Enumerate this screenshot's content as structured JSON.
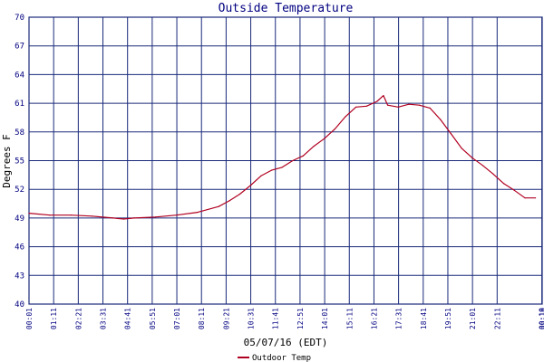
{
  "chart_data": {
    "type": "line",
    "title": "Outside Temperature",
    "ylabel": "Degrees F",
    "xlabel": "05/07/16 (EDT)",
    "ylim": [
      40,
      70
    ],
    "yticks": [
      40,
      43,
      46,
      49,
      52,
      55,
      58,
      61,
      64,
      67,
      70
    ],
    "xticks": [
      "00:01",
      "01:11",
      "02:21",
      "03:31",
      "04:41",
      "05:51",
      "07:01",
      "08:11",
      "09:21",
      "10:31",
      "11:41",
      "12:51",
      "14:01",
      "15:11",
      "16:21",
      "17:31",
      "18:41",
      "19:51",
      "21:01",
      "22:11",
      "00:18",
      "00:19"
    ],
    "grid": true,
    "legend_position": "bottom-left",
    "colors": {
      "line": "#b00020",
      "grid": "#1a2a7a",
      "title": "#000080",
      "axis_text": "#000080"
    },
    "series": [
      {
        "name": "Outdoor Temp",
        "x_hours": [
          0,
          1,
          2,
          3,
          4,
          4.5,
          5,
          6,
          7,
          8,
          9,
          9.5,
          10,
          10.5,
          11,
          11.5,
          12,
          12.5,
          13,
          13.5,
          14,
          14.5,
          15,
          15.5,
          16,
          16.5,
          16.8,
          17,
          17.5,
          18,
          18.5,
          19,
          19.5,
          20,
          20.5,
          21,
          21.5,
          22,
          22.5,
          23,
          23.5,
          24
        ],
        "values": [
          49.5,
          49.3,
          49.3,
          49.2,
          49.0,
          48.9,
          49.0,
          49.1,
          49.3,
          49.6,
          50.2,
          50.8,
          51.5,
          52.4,
          53.4,
          54.0,
          54.3,
          55.0,
          55.5,
          56.5,
          57.3,
          58.3,
          59.6,
          60.6,
          60.7,
          61.2,
          61.8,
          60.8,
          60.6,
          60.9,
          60.8,
          60.5,
          59.3,
          57.8,
          56.3,
          55.3,
          54.5,
          53.6,
          52.6,
          51.9,
          51.1,
          51.1
        ]
      }
    ]
  }
}
